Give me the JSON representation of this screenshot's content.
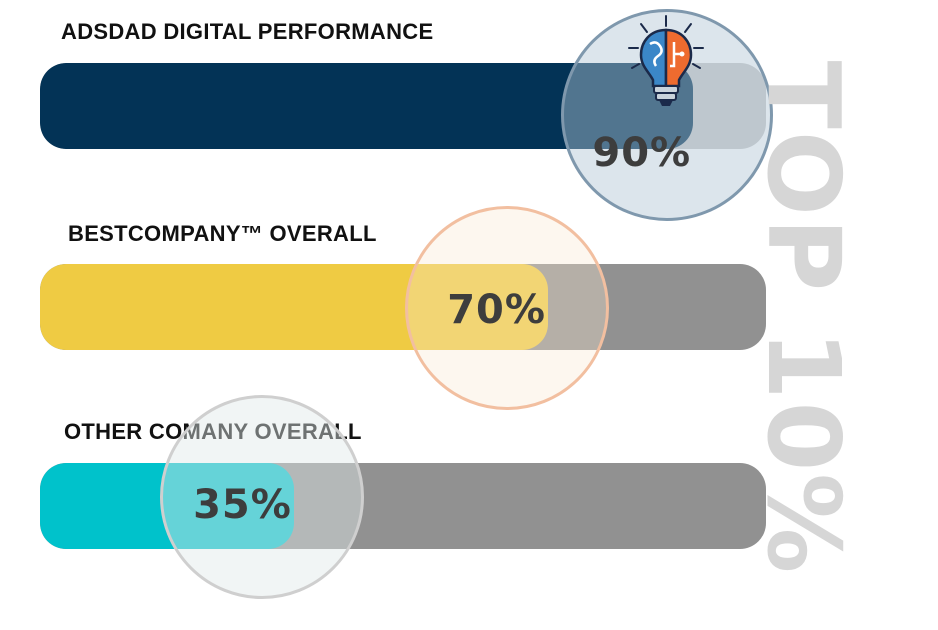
{
  "chart_data": {
    "type": "bar",
    "orientation": "horizontal",
    "categories": [
      "ADSDAD DIGITAL PERFORMANCE",
      "BESTCOMPANY™ OVERALL",
      "OTHER COMANY OVERALL"
    ],
    "values": [
      90,
      70,
      35
    ],
    "value_labels": [
      "90%",
      "70%",
      "35%"
    ],
    "ylim": [
      0,
      100
    ],
    "grid": false,
    "annotation": "TOP 10%",
    "colors": [
      "#033356",
      "#efcb43",
      "#00c2cb"
    ],
    "track_colors": [
      "#c8c9c9",
      "#919191",
      "#919191"
    ]
  },
  "icons": {
    "badge": "lightbulb-brain-icon"
  }
}
